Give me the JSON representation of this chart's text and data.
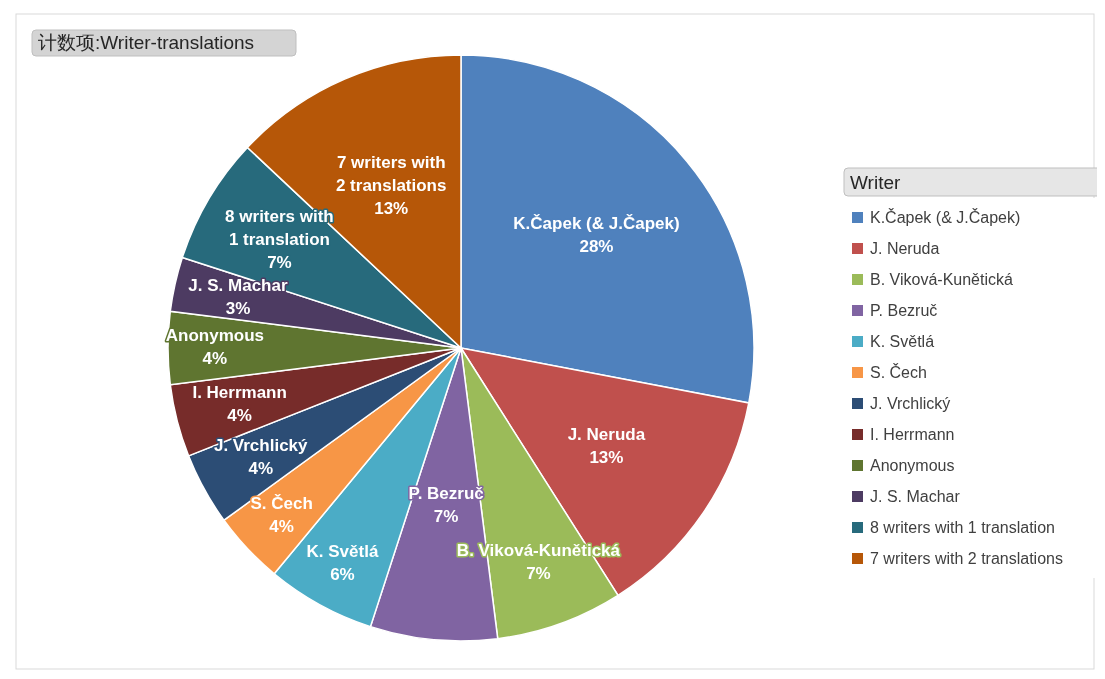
{
  "chart_data": {
    "type": "pie",
    "title": "计数项:Writer-translations",
    "legend_title": "Writer",
    "legend": "right",
    "value_labels": [
      "28%",
      "13%",
      "7%",
      "7%",
      "6%",
      "4%",
      "4%",
      "4%",
      "4%",
      "3%",
      "7%",
      "13%"
    ],
    "categories": [
      "K.Čapek (& J.Čapek)",
      "J. Neruda",
      "B. Viková-Kunětická",
      "P. Bezruč",
      "K. Světlá",
      "S. Čech",
      "J. Vrchlický",
      "I. Herrmann",
      "Anonymous",
      "J. S. Machar",
      "8 writers with 1 translation",
      "7 writers with 2 translations"
    ],
    "values": [
      28,
      13,
      7,
      7,
      6,
      4,
      4,
      4,
      4,
      3,
      7,
      13
    ],
    "colors": [
      "#4f81bd",
      "#c0504d",
      "#9bbb59",
      "#8064a2",
      "#4bacc6",
      "#f79646",
      "#2c4d75",
      "#772c2a",
      "#5f7530",
      "#4d3b62",
      "#276a7c",
      "#b65708"
    ]
  }
}
